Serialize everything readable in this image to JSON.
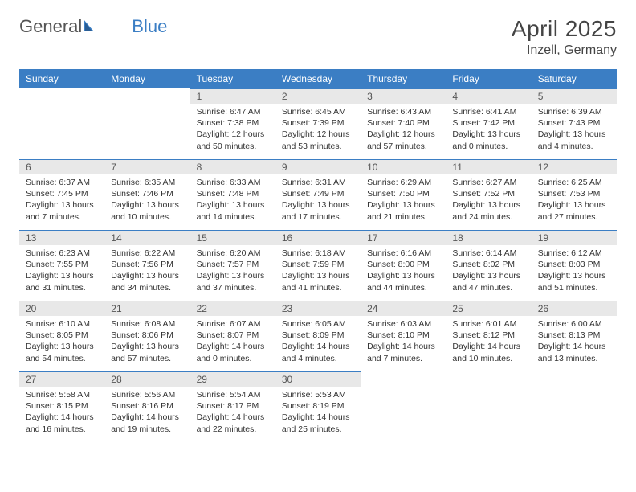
{
  "logo": {
    "text1": "General",
    "text2": "Blue"
  },
  "title": "April 2025",
  "location": "Inzell, Germany",
  "colors": {
    "header_bg": "#3b7ec4",
    "header_text": "#ffffff",
    "daynum_bg": "#e8e8e8",
    "daynum_border": "#3b7ec4",
    "body_text": "#333333",
    "background": "#ffffff"
  },
  "calendar": {
    "type": "table",
    "columns": [
      "Sunday",
      "Monday",
      "Tuesday",
      "Wednesday",
      "Thursday",
      "Friday",
      "Saturday"
    ],
    "font_size_header": 12,
    "font_size_body": 10.5,
    "weeks": [
      [
        {
          "empty": true
        },
        {
          "empty": true
        },
        {
          "num": "1",
          "sunrise": "Sunrise: 6:47 AM",
          "sunset": "Sunset: 7:38 PM",
          "daylight": "Daylight: 12 hours and 50 minutes."
        },
        {
          "num": "2",
          "sunrise": "Sunrise: 6:45 AM",
          "sunset": "Sunset: 7:39 PM",
          "daylight": "Daylight: 12 hours and 53 minutes."
        },
        {
          "num": "3",
          "sunrise": "Sunrise: 6:43 AM",
          "sunset": "Sunset: 7:40 PM",
          "daylight": "Daylight: 12 hours and 57 minutes."
        },
        {
          "num": "4",
          "sunrise": "Sunrise: 6:41 AM",
          "sunset": "Sunset: 7:42 PM",
          "daylight": "Daylight: 13 hours and 0 minutes."
        },
        {
          "num": "5",
          "sunrise": "Sunrise: 6:39 AM",
          "sunset": "Sunset: 7:43 PM",
          "daylight": "Daylight: 13 hours and 4 minutes."
        }
      ],
      [
        {
          "num": "6",
          "sunrise": "Sunrise: 6:37 AM",
          "sunset": "Sunset: 7:45 PM",
          "daylight": "Daylight: 13 hours and 7 minutes."
        },
        {
          "num": "7",
          "sunrise": "Sunrise: 6:35 AM",
          "sunset": "Sunset: 7:46 PM",
          "daylight": "Daylight: 13 hours and 10 minutes."
        },
        {
          "num": "8",
          "sunrise": "Sunrise: 6:33 AM",
          "sunset": "Sunset: 7:48 PM",
          "daylight": "Daylight: 13 hours and 14 minutes."
        },
        {
          "num": "9",
          "sunrise": "Sunrise: 6:31 AM",
          "sunset": "Sunset: 7:49 PM",
          "daylight": "Daylight: 13 hours and 17 minutes."
        },
        {
          "num": "10",
          "sunrise": "Sunrise: 6:29 AM",
          "sunset": "Sunset: 7:50 PM",
          "daylight": "Daylight: 13 hours and 21 minutes."
        },
        {
          "num": "11",
          "sunrise": "Sunrise: 6:27 AM",
          "sunset": "Sunset: 7:52 PM",
          "daylight": "Daylight: 13 hours and 24 minutes."
        },
        {
          "num": "12",
          "sunrise": "Sunrise: 6:25 AM",
          "sunset": "Sunset: 7:53 PM",
          "daylight": "Daylight: 13 hours and 27 minutes."
        }
      ],
      [
        {
          "num": "13",
          "sunrise": "Sunrise: 6:23 AM",
          "sunset": "Sunset: 7:55 PM",
          "daylight": "Daylight: 13 hours and 31 minutes."
        },
        {
          "num": "14",
          "sunrise": "Sunrise: 6:22 AM",
          "sunset": "Sunset: 7:56 PM",
          "daylight": "Daylight: 13 hours and 34 minutes."
        },
        {
          "num": "15",
          "sunrise": "Sunrise: 6:20 AM",
          "sunset": "Sunset: 7:57 PM",
          "daylight": "Daylight: 13 hours and 37 minutes."
        },
        {
          "num": "16",
          "sunrise": "Sunrise: 6:18 AM",
          "sunset": "Sunset: 7:59 PM",
          "daylight": "Daylight: 13 hours and 41 minutes."
        },
        {
          "num": "17",
          "sunrise": "Sunrise: 6:16 AM",
          "sunset": "Sunset: 8:00 PM",
          "daylight": "Daylight: 13 hours and 44 minutes."
        },
        {
          "num": "18",
          "sunrise": "Sunrise: 6:14 AM",
          "sunset": "Sunset: 8:02 PM",
          "daylight": "Daylight: 13 hours and 47 minutes."
        },
        {
          "num": "19",
          "sunrise": "Sunrise: 6:12 AM",
          "sunset": "Sunset: 8:03 PM",
          "daylight": "Daylight: 13 hours and 51 minutes."
        }
      ],
      [
        {
          "num": "20",
          "sunrise": "Sunrise: 6:10 AM",
          "sunset": "Sunset: 8:05 PM",
          "daylight": "Daylight: 13 hours and 54 minutes."
        },
        {
          "num": "21",
          "sunrise": "Sunrise: 6:08 AM",
          "sunset": "Sunset: 8:06 PM",
          "daylight": "Daylight: 13 hours and 57 minutes."
        },
        {
          "num": "22",
          "sunrise": "Sunrise: 6:07 AM",
          "sunset": "Sunset: 8:07 PM",
          "daylight": "Daylight: 14 hours and 0 minutes."
        },
        {
          "num": "23",
          "sunrise": "Sunrise: 6:05 AM",
          "sunset": "Sunset: 8:09 PM",
          "daylight": "Daylight: 14 hours and 4 minutes."
        },
        {
          "num": "24",
          "sunrise": "Sunrise: 6:03 AM",
          "sunset": "Sunset: 8:10 PM",
          "daylight": "Daylight: 14 hours and 7 minutes."
        },
        {
          "num": "25",
          "sunrise": "Sunrise: 6:01 AM",
          "sunset": "Sunset: 8:12 PM",
          "daylight": "Daylight: 14 hours and 10 minutes."
        },
        {
          "num": "26",
          "sunrise": "Sunrise: 6:00 AM",
          "sunset": "Sunset: 8:13 PM",
          "daylight": "Daylight: 14 hours and 13 minutes."
        }
      ],
      [
        {
          "num": "27",
          "sunrise": "Sunrise: 5:58 AM",
          "sunset": "Sunset: 8:15 PM",
          "daylight": "Daylight: 14 hours and 16 minutes."
        },
        {
          "num": "28",
          "sunrise": "Sunrise: 5:56 AM",
          "sunset": "Sunset: 8:16 PM",
          "daylight": "Daylight: 14 hours and 19 minutes."
        },
        {
          "num": "29",
          "sunrise": "Sunrise: 5:54 AM",
          "sunset": "Sunset: 8:17 PM",
          "daylight": "Daylight: 14 hours and 22 minutes."
        },
        {
          "num": "30",
          "sunrise": "Sunrise: 5:53 AM",
          "sunset": "Sunset: 8:19 PM",
          "daylight": "Daylight: 14 hours and 25 minutes."
        },
        {
          "empty": true
        },
        {
          "empty": true
        },
        {
          "empty": true
        }
      ]
    ]
  }
}
